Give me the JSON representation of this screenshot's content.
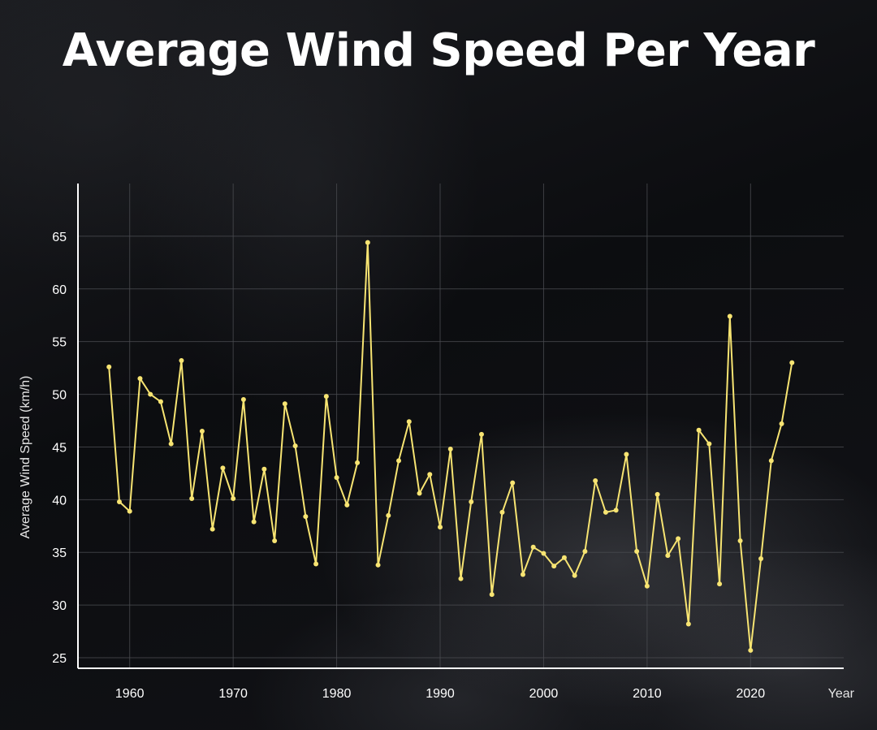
{
  "title": "Average Wind Speed Per Year",
  "colors": {
    "line": "#f7e472",
    "axis": "#ffffff",
    "grid": "#4a4b50",
    "text": "#ffffff"
  },
  "chart_data": {
    "type": "line",
    "title": "Average Wind Speed Per Year",
    "xlabel": "Year",
    "ylabel": "Average Wind Speed (km/h)",
    "xlim": [
      1955,
      2029
    ],
    "ylim": [
      24,
      70
    ],
    "xticks": [
      1960,
      1970,
      1980,
      1990,
      2000,
      2010,
      2020
    ],
    "yticks": [
      25,
      30,
      35,
      40,
      45,
      50,
      55,
      60,
      65
    ],
    "grid": true,
    "series": [
      {
        "name": "Average Wind Speed",
        "x": [
          1958,
          1959,
          1960,
          1961,
          1962,
          1963,
          1964,
          1965,
          1966,
          1967,
          1968,
          1969,
          1970,
          1971,
          1972,
          1973,
          1974,
          1975,
          1976,
          1977,
          1978,
          1979,
          1980,
          1981,
          1982,
          1983,
          1984,
          1985,
          1986,
          1987,
          1988,
          1989,
          1990,
          1991,
          1992,
          1993,
          1994,
          1995,
          1996,
          1997,
          1998,
          1999,
          2000,
          2001,
          2002,
          2003,
          2004,
          2005,
          2006,
          2007,
          2008,
          2009,
          2010,
          2011,
          2012,
          2013,
          2014,
          2015,
          2016,
          2017,
          2018,
          2019,
          2020,
          2021,
          2022,
          2023,
          2024
        ],
        "values": [
          52.6,
          39.8,
          38.9,
          51.5,
          50.0,
          49.3,
          45.3,
          53.2,
          40.1,
          46.5,
          37.2,
          43.0,
          40.1,
          49.5,
          37.9,
          42.9,
          36.1,
          49.1,
          45.1,
          38.4,
          33.9,
          49.8,
          42.1,
          39.5,
          43.5,
          64.4,
          33.8,
          38.5,
          43.7,
          47.4,
          40.6,
          42.4,
          37.4,
          44.8,
          32.5,
          39.8,
          46.2,
          31.0,
          38.8,
          41.6,
          32.9,
          35.5,
          34.9,
          33.7,
          34.5,
          32.8,
          35.1,
          41.8,
          38.8,
          39.0,
          44.3,
          35.1,
          31.8,
          40.5,
          34.7,
          36.3,
          28.2,
          46.6,
          45.3,
          32.0,
          57.4,
          36.1,
          25.7,
          34.4,
          43.7,
          47.2,
          53.0
        ]
      }
    ]
  }
}
